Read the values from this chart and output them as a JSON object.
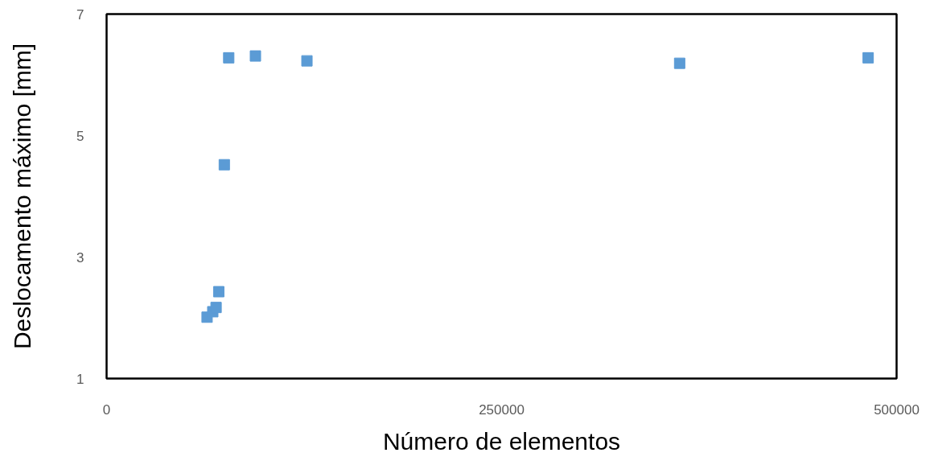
{
  "chart_data": {
    "type": "scatter",
    "xlabel": "Número de elementos",
    "ylabel": "Deslocamento máximo [mm]",
    "x": [
      63600,
      67200,
      69300,
      71000,
      74500,
      77300,
      94200,
      126800,
      362700,
      482000
    ],
    "series": [
      {
        "color": "#5b9bd5",
        "values": [
          2.01,
          2.1,
          2.17,
          2.43,
          4.52,
          6.28,
          6.31,
          6.23,
          6.19,
          6.28
        ]
      }
    ],
    "xlim": [
      0,
      500000
    ],
    "ylim": [
      1,
      7
    ],
    "xticks": [
      0,
      250000,
      500000
    ],
    "yticks": [
      1,
      3,
      5,
      7
    ],
    "marker": "square"
  }
}
